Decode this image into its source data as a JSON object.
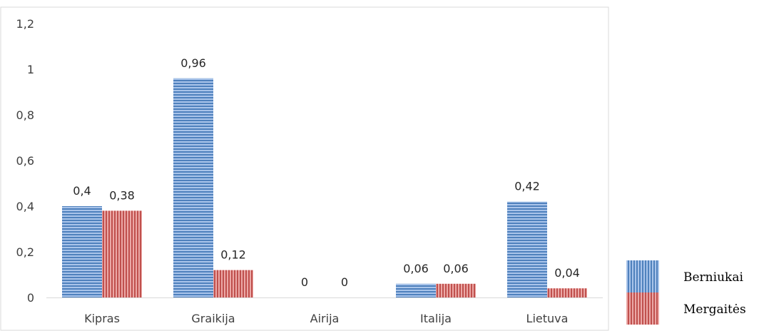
{
  "chart_data": {
    "type": "bar",
    "title": "",
    "xlabel": "",
    "ylabel": "",
    "categories": [
      "Kipras",
      "Graikija",
      "Airija",
      "Italija",
      "Lietuva"
    ],
    "series": [
      {
        "name": "Berniukai",
        "values": [
          0.4,
          0.96,
          0,
          0.06,
          0.42
        ],
        "labels": [
          "0,4",
          "0,96",
          "0",
          "0,06",
          "0,42"
        ],
        "color": "#4f81bd",
        "stripe": "#a9c4ea",
        "pattern": "horizontal-lines"
      },
      {
        "name": "Mergaitės",
        "values": [
          0.38,
          0.12,
          0,
          0.06,
          0.04
        ],
        "labels": [
          "0,38",
          "0,12",
          "0",
          "0,06",
          "0,04"
        ],
        "color": "#c0504d",
        "stripe": "#eba8a6",
        "pattern": "vertical-lines"
      }
    ],
    "ylim": [
      0,
      1.2
    ],
    "yticks": [
      {
        "value": 0,
        "label": "0"
      },
      {
        "value": 0.2,
        "label": "0,2"
      },
      {
        "value": 0.4,
        "label": "0,4"
      },
      {
        "value": 0.6,
        "label": "0,6"
      },
      {
        "value": 0.8,
        "label": "0,8"
      },
      {
        "value": 1,
        "label": "1"
      },
      {
        "value": 1.2,
        "label": "1,2"
      }
    ],
    "grid": false,
    "legend_position": "bottom-right"
  }
}
